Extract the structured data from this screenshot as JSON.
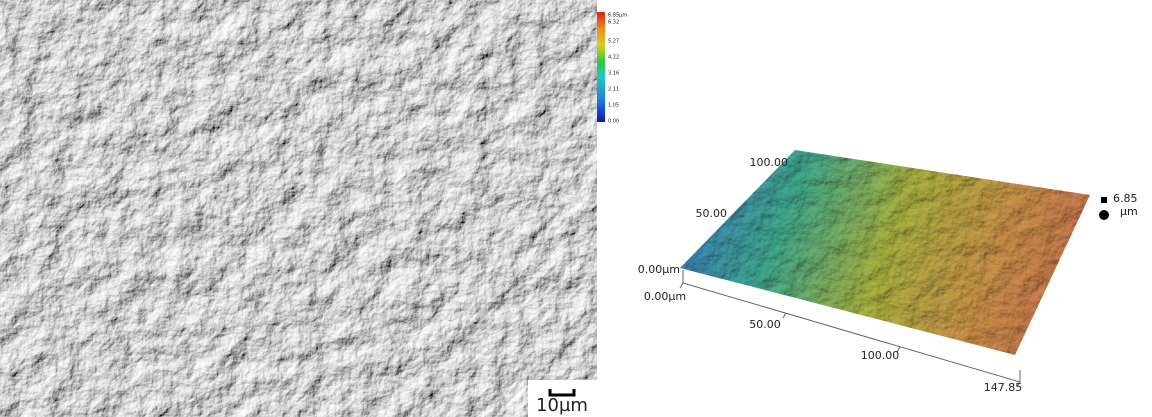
{
  "micrograph": {
    "scale_bar": "10µm",
    "colorbar": {
      "labels": [
        "6.85µm",
        "6.32",
        "5.27",
        "4.22",
        "3.16",
        "2.11",
        "1.05",
        "0.00"
      ]
    }
  },
  "surface_plot": {
    "y_axis_labels": [
      "0.00µm",
      "50.00",
      "100.00"
    ],
    "x_axis_labels": [
      "0.00µm",
      "50.00",
      "100.00",
      "147.85"
    ],
    "z_label": "6.85",
    "z_unit": "µm"
  }
}
